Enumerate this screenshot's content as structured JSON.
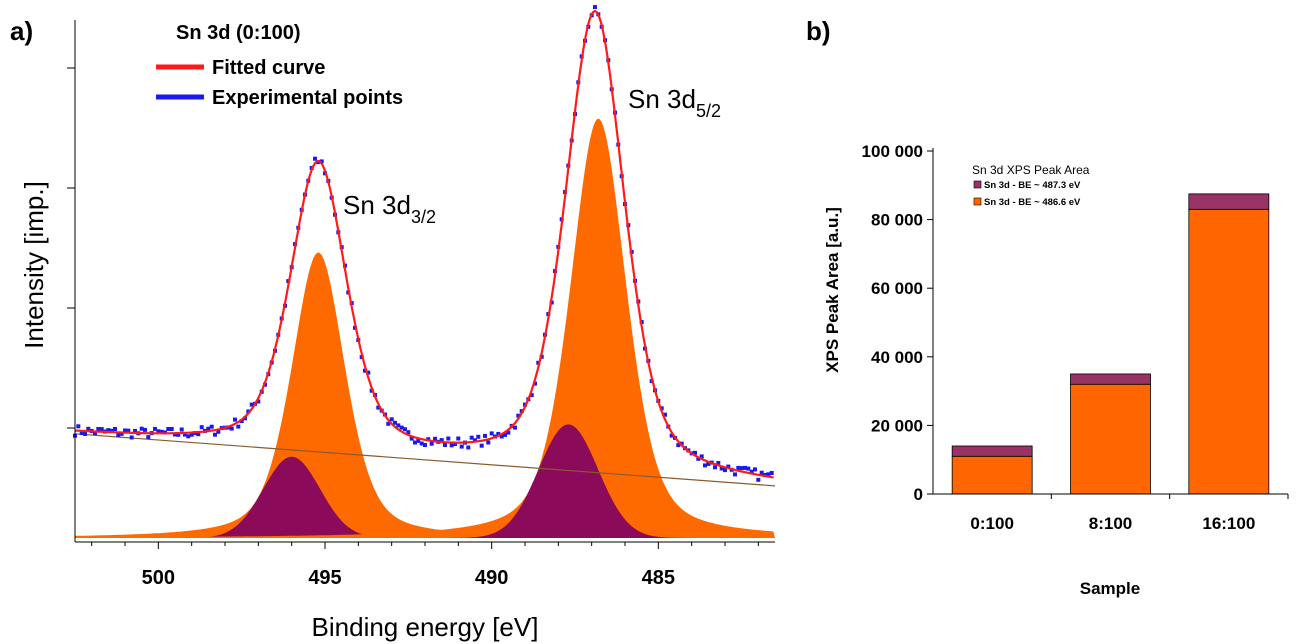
{
  "panel_a": {
    "label": "a)",
    "legend_title": "Sn 3d (0:100)",
    "legend_fitted": "Fitted curve",
    "legend_experimental": "Experimental points",
    "peak_label_32_main": "Sn 3d",
    "peak_label_32_sub": "3/2",
    "peak_label_52_main": "Sn 3d",
    "peak_label_52_sub": "5/2",
    "colors": {
      "fitted": "#ff1a1a",
      "experimental": "#1a1aee",
      "component_main": "#ff6a00",
      "component_minor": "#8b0a5a",
      "background": "#8b5a2b"
    }
  },
  "panel_b": {
    "label": "b)",
    "legend_title": "Sn 3d XPS Peak Area",
    "colors": {
      "top": "#993366",
      "bottom": "#ff6600"
    }
  },
  "chart_data": [
    {
      "type": "line",
      "xlabel": "Binding energy [eV]",
      "ylabel": "Intensity [imp.]",
      "xlim": [
        502.5,
        481.5
      ],
      "x_reversed": true,
      "x_ticks": [
        500,
        495,
        490,
        485
      ],
      "y_tick_labels_shown": false,
      "series": [
        {
          "name": "Fitted curve",
          "peaks": [
            {
              "center": 495.2,
              "height": 0.718
            },
            {
              "center": 486.9,
              "height": 1.0
            }
          ]
        },
        {
          "name": "Experimental points"
        }
      ],
      "components": [
        {
          "center": 495.2,
          "height": 0.548,
          "color": "orange"
        },
        {
          "center": 496.0,
          "height": 0.156,
          "color": "purple"
        },
        {
          "center": 486.8,
          "height": 0.805,
          "color": "orange"
        },
        {
          "center": 487.7,
          "height": 0.218,
          "color": "purple"
        }
      ],
      "background_line": {
        "start": 0.2,
        "end": 0.1
      }
    },
    {
      "type": "bar",
      "stacked": true,
      "xlabel": "Sample",
      "ylabel": "XPS Peak Area [a.u.]",
      "ylim": [
        0,
        100000
      ],
      "y_ticks": [
        0,
        20000,
        40000,
        60000,
        80000,
        100000
      ],
      "y_tick_labels": [
        "0",
        "20 000",
        "40 000",
        "60 000",
        "80 000",
        "100 000"
      ],
      "categories": [
        "0:100",
        "8:100",
        "16:100"
      ],
      "legend_title": "Sn 3d XPS Peak Area",
      "series": [
        {
          "name": "Sn 3d - BE ~ 486.6 eV",
          "values": [
            11000,
            32000,
            83000
          ]
        },
        {
          "name": "Sn 3d - BE ~ 487.3 eV",
          "values": [
            3000,
            3000,
            4500
          ]
        }
      ]
    }
  ]
}
